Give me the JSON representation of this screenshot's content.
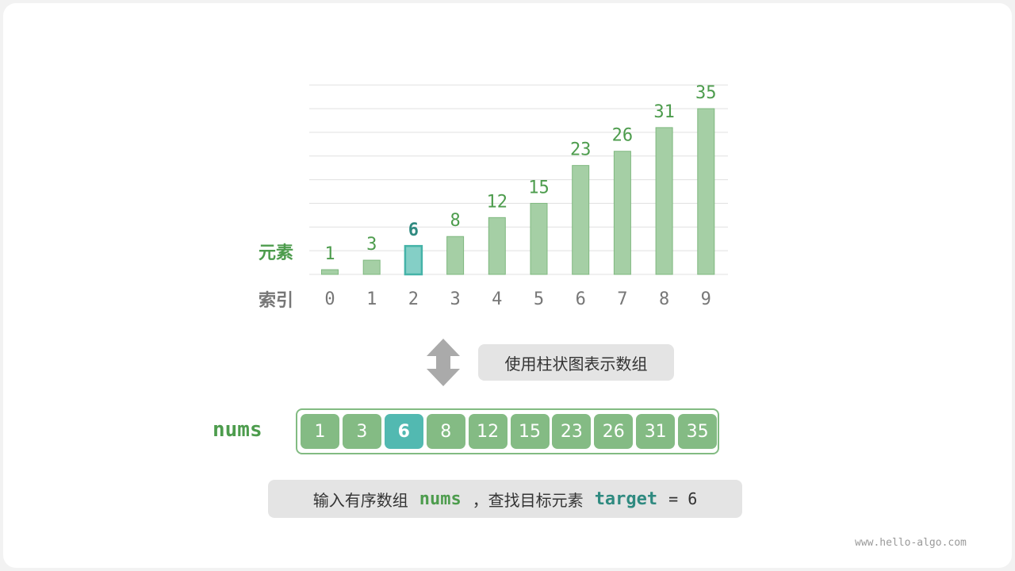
{
  "chart_data": {
    "type": "bar",
    "categories": [
      "0",
      "1",
      "2",
      "3",
      "4",
      "5",
      "6",
      "7",
      "8",
      "9"
    ],
    "values": [
      1,
      3,
      6,
      8,
      12,
      15,
      23,
      26,
      31,
      35
    ],
    "highlight_index": 2,
    "ylabel": "元素",
    "xlabel": "索引",
    "ylim": [
      0,
      40
    ],
    "grid": true,
    "colors": {
      "bar": "#a5cfa5",
      "bar_border": "#7fb87f",
      "highlight": "#84cfc6",
      "highlight_border": "#45b3a8",
      "label": "#4d9c4d",
      "highlight_label": "#2f8a80",
      "tick": "#777777"
    }
  },
  "arrow_icon": "double-arrow-vertical",
  "caption": "使用柱状图表示数组",
  "array": {
    "name": "nums",
    "values": [
      "1",
      "3",
      "6",
      "8",
      "12",
      "15",
      "23",
      "26",
      "31",
      "35"
    ],
    "highlight_index": 2
  },
  "description": {
    "part1": "输入有序数组",
    "var1": "nums",
    "part2": "，查找目标元素",
    "var2": "target",
    "part3": "= 6"
  },
  "watermark": "www.hello-algo.com"
}
